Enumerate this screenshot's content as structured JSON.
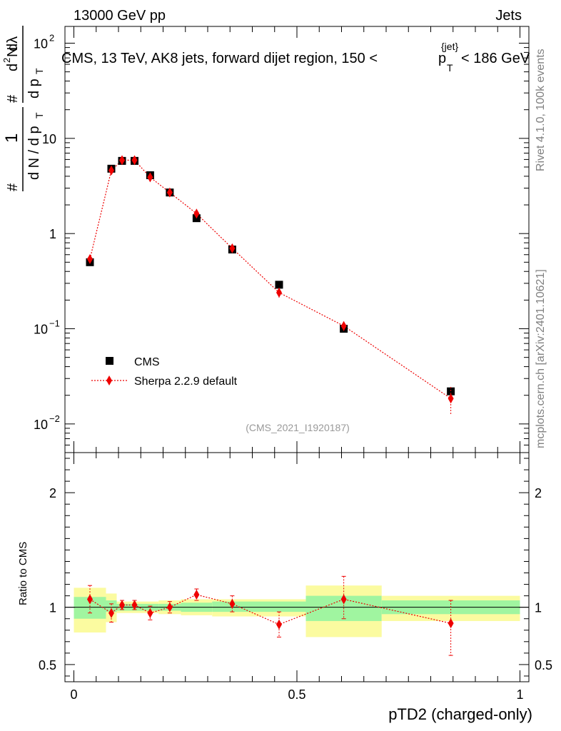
{
  "header": {
    "energy_label": "13000 GeV pp",
    "process_label": "Jets",
    "plot_title": "CMS, 13 TeV, AK8 jets, forward dijet region, 150 <",
    "title_tail": "< 186 GeV",
    "title_pt_p": "p",
    "title_pt_sub": "T",
    "title_pt_sup": "{jet}"
  },
  "side_labels": {
    "rivet": "Rivet 4.1.0,  100k events",
    "mcplots": "mcplots.cern.ch [arXiv:2401.10621]"
  },
  "analysis_id": "(CMS_2021_I1920187)",
  "y_axis": {
    "hash_top": "#",
    "one": "1",
    "denominator": "d N / d p",
    "denominator_sub": "T",
    "hash_bottom": "#",
    "numerator_top": "d",
    "numerator_sup": "2",
    "numerator_N": "N",
    "numerator_bottom": "d p",
    "numerator_bottom_sub": "T",
    "numerator_dlambda": "dλ"
  },
  "ratio_ylabel": "Ratio to CMS",
  "chart_data": {
    "type": "scatter",
    "title": "CMS, 13 TeV, AK8 jets, forward dijet region, 150 < p_T^{jet} < 186 GeV",
    "xlabel": "pTD2 (charged-only)",
    "xlim": [
      -0.02,
      1.02
    ],
    "x_tick_labels": [
      "0",
      "0.5",
      "1"
    ],
    "main_panel": {
      "yscale": "log",
      "ylim": [
        0.005,
        150
      ],
      "y_tick_labels": [
        {
          "base": "10",
          "exp": "2"
        },
        {
          "base": "10",
          "exp": ""
        },
        {
          "base": "1",
          "exp": ""
        },
        {
          "base": "10",
          "exp": "−1"
        },
        {
          "base": "10",
          "exp": "−2"
        }
      ]
    },
    "ratio_panel": {
      "ylim": [
        0.35,
        2.35
      ],
      "y_tick_labels": [
        "2",
        "1",
        "0.5"
      ]
    },
    "legend": {
      "placement": "lower-left",
      "entries": [
        "CMS",
        "Sherpa 2.2.9 default"
      ]
    },
    "bin_edges": [
      0.0,
      0.072,
      0.096,
      0.12,
      0.152,
      0.19,
      0.24,
      0.31,
      0.4,
      0.52,
      0.69,
      1.0
    ],
    "series": [
      {
        "name": "CMS",
        "x": [
          0.036,
          0.084,
          0.108,
          0.136,
          0.171,
          0.215,
          0.275,
          0.355,
          0.46,
          0.605,
          0.845
        ],
        "values": [
          0.5,
          4.8,
          5.8,
          5.8,
          4.1,
          2.7,
          1.45,
          0.68,
          0.29,
          0.1,
          0.022
        ]
      },
      {
        "name": "Sherpa 2.2.9 default",
        "x": [
          0.036,
          0.084,
          0.108,
          0.136,
          0.171,
          0.215,
          0.275,
          0.355,
          0.46,
          0.605,
          0.845
        ],
        "values": [
          0.54,
          4.6,
          5.9,
          5.9,
          3.9,
          2.7,
          1.62,
          0.7,
          0.24,
          0.107,
          0.0185
        ],
        "err_low": [
          0.05,
          0.2,
          0.2,
          0.2,
          0.15,
          0.1,
          0.07,
          0.04,
          0.03,
          0.012,
          0.006
        ],
        "err_high": [
          0.05,
          0.2,
          0.2,
          0.2,
          0.15,
          0.1,
          0.07,
          0.04,
          0.03,
          0.012,
          0.006
        ]
      }
    ],
    "ratio": {
      "x": [
        0.036,
        0.084,
        0.108,
        0.136,
        0.171,
        0.215,
        0.275,
        0.355,
        0.46,
        0.605,
        0.845
      ],
      "values": [
        1.07,
        0.95,
        1.02,
        1.02,
        0.95,
        1.0,
        1.11,
        1.03,
        0.85,
        1.07,
        0.86
      ],
      "err_low": [
        0.12,
        0.08,
        0.04,
        0.04,
        0.06,
        0.05,
        0.05,
        0.07,
        0.11,
        0.17,
        0.28
      ],
      "err_high": [
        0.12,
        0.08,
        0.04,
        0.04,
        0.06,
        0.05,
        0.05,
        0.07,
        0.11,
        0.2,
        0.2
      ]
    },
    "cms_uncertainty": {
      "stat_low": [
        0.9,
        0.96,
        0.97,
        0.97,
        0.97,
        0.97,
        0.96,
        0.96,
        0.96,
        0.88,
        0.94
      ],
      "stat_high": [
        1.09,
        1.06,
        1.03,
        1.03,
        1.03,
        1.03,
        1.04,
        1.05,
        1.05,
        1.1,
        1.06
      ],
      "total_low": [
        0.78,
        0.87,
        0.95,
        0.95,
        0.95,
        0.94,
        0.93,
        0.92,
        0.92,
        0.74,
        0.88
      ],
      "total_high": [
        1.17,
        1.12,
        1.05,
        1.05,
        1.05,
        1.06,
        1.07,
        1.07,
        1.07,
        1.19,
        1.1
      ]
    },
    "colors": {
      "cms": "#000000",
      "mc": "#ee0000",
      "band_inner": "#a0f5a0",
      "band_outer": "#fbfba0",
      "annotation": "#999999",
      "side_text": "#808080"
    }
  }
}
